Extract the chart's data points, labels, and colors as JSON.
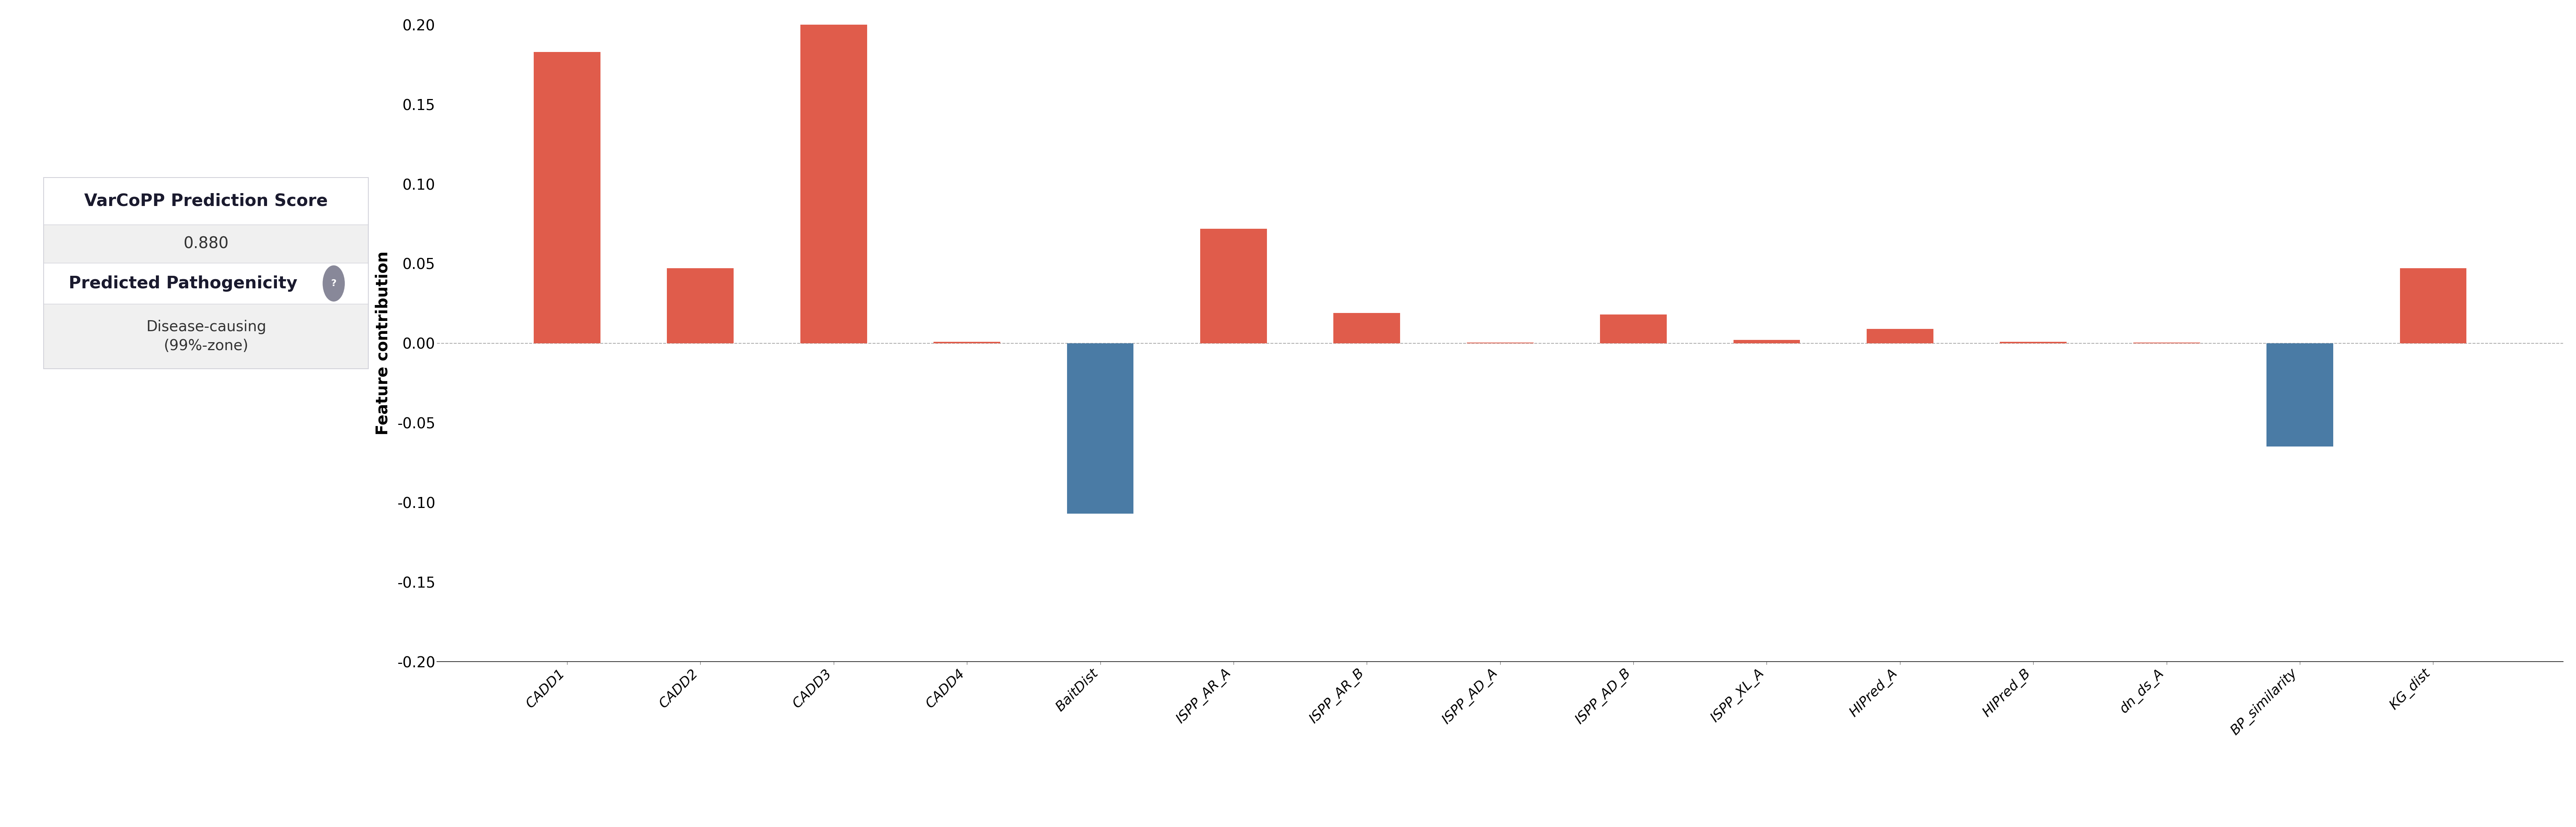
{
  "categories": [
    "CADD1",
    "CADD2",
    "CADD3",
    "CADD4",
    "BaitDist",
    "ISPP_AR_A",
    "ISPP_AR_B",
    "ISPP_AD_A",
    "ISPP_AD_B",
    "ISPP_XL_A",
    "HIPred_A",
    "HIPred_B",
    "dn_ds_A",
    "BP_similarity",
    "KG_dist"
  ],
  "values": [
    0.183,
    0.047,
    0.205,
    0.001,
    -0.107,
    0.072,
    0.019,
    0.0005,
    0.018,
    0.002,
    0.009,
    0.001,
    0.0005,
    -0.065,
    0.047
  ],
  "positive_color": "#E05C4B",
  "negative_color": "#4A7BA5",
  "ylabel": "Feature contribution",
  "ylim": [
    -0.2,
    0.2
  ],
  "yticks": [
    -0.2,
    -0.15,
    -0.1,
    -0.05,
    0.0,
    0.05,
    0.1,
    0.15,
    0.2
  ],
  "score_label": "VarCoPP Prediction Score",
  "score_value": "0.880",
  "pathogenicity_label": "Predicted Pathogenicity",
  "pathogenicity_value": "Disease-causing\n(99%-zone)",
  "background_color": "#ffffff",
  "panel_border_color": "#d0d0d8",
  "info_bg_white": "#ffffff",
  "info_bg_grey": "#f0f0f0"
}
